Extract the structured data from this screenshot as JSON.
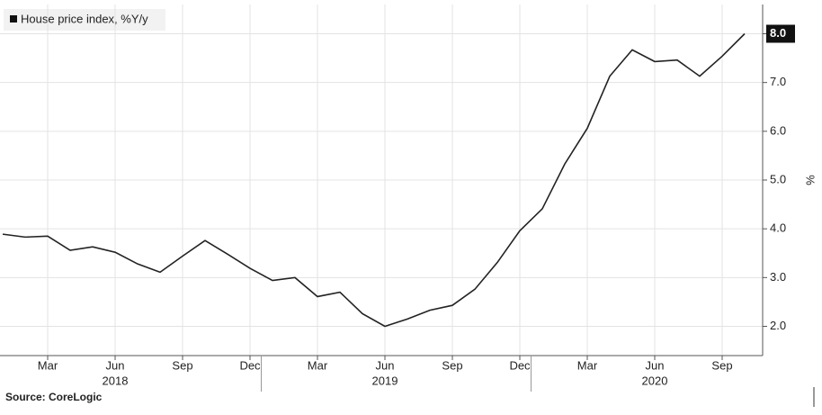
{
  "chart_data": {
    "type": "line",
    "legend_label": "House price index, %Y/y",
    "y_axis_label": "%",
    "source": "Source: CoreLogic",
    "x": [
      "2018-01",
      "2018-02",
      "2018-03",
      "2018-04",
      "2018-05",
      "2018-06",
      "2018-07",
      "2018-08",
      "2018-09",
      "2018-10",
      "2018-11",
      "2018-12",
      "2019-01",
      "2019-02",
      "2019-03",
      "2019-04",
      "2019-05",
      "2019-06",
      "2019-07",
      "2019-08",
      "2019-09",
      "2019-10",
      "2019-11",
      "2019-12",
      "2020-01",
      "2020-02",
      "2020-03",
      "2020-04",
      "2020-05",
      "2020-06",
      "2020-07",
      "2020-08",
      "2020-09",
      "2020-10"
    ],
    "series": [
      {
        "name": "House price index, %Y/y",
        "color": "#222222",
        "values": [
          3.89,
          3.83,
          3.85,
          3.56,
          3.63,
          3.52,
          3.28,
          3.11,
          3.44,
          3.76,
          3.48,
          3.19,
          2.94,
          3.0,
          2.61,
          2.7,
          2.26,
          2.0,
          2.15,
          2.33,
          2.43,
          2.76,
          3.31,
          3.96,
          4.41,
          5.33,
          6.06,
          7.13,
          7.67,
          7.43,
          7.46,
          7.13,
          7.54,
          8.0
        ]
      }
    ],
    "xticks": [
      {
        "value": "2018-03",
        "label": "Mar"
      },
      {
        "value": "2018-06",
        "label": "Jun"
      },
      {
        "value": "2018-09",
        "label": "Sep"
      },
      {
        "value": "2018-12",
        "label": "Dec"
      },
      {
        "value": "2019-03",
        "label": "Mar"
      },
      {
        "value": "2019-06",
        "label": "Jun"
      },
      {
        "value": "2019-09",
        "label": "Sep"
      },
      {
        "value": "2019-12",
        "label": "Dec"
      },
      {
        "value": "2020-03",
        "label": "Mar"
      },
      {
        "value": "2020-06",
        "label": "Jun"
      },
      {
        "value": "2020-09",
        "label": "Sep"
      }
    ],
    "year_labels": [
      {
        "value": "2018-06",
        "label": "2018"
      },
      {
        "value": "2019-06",
        "label": "2019"
      },
      {
        "value": "2020-06",
        "label": "2020"
      }
    ],
    "ylim": [
      1.4,
      8.6
    ],
    "yticks": [
      {
        "value": 2,
        "label": "2.0"
      },
      {
        "value": 3,
        "label": "3.0"
      },
      {
        "value": 4,
        "label": "4.0"
      },
      {
        "value": 5,
        "label": "5.0"
      },
      {
        "value": 6,
        "label": "6.0"
      },
      {
        "value": 7,
        "label": "7.0"
      },
      {
        "value": 8,
        "label": "8.0"
      }
    ],
    "grid": true
  }
}
